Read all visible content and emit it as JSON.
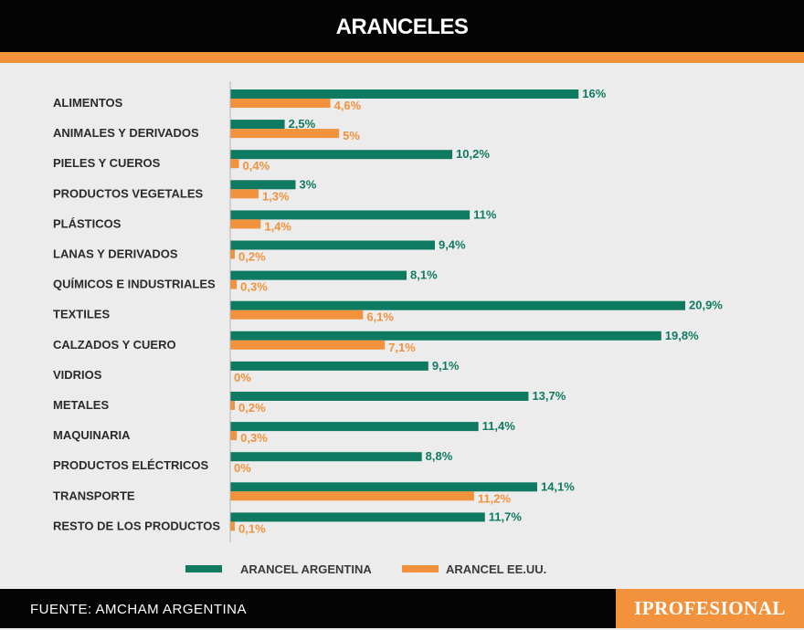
{
  "header": {
    "title": "ARANCELES"
  },
  "footer": {
    "source": "FUENTE: AMCHAM ARGENTINA",
    "brand": "IPROFESIONAL"
  },
  "colors": {
    "argentina": "#0f7a62",
    "eeuu": "#f2923d",
    "header_bg": "#040404",
    "background": "#ececec"
  },
  "chart_data": {
    "type": "bar",
    "orientation": "horizontal",
    "title": "ARANCELES",
    "categories": [
      "ALIMENTOS",
      "ANIMALES Y DERIVADOS",
      "PIELES Y CUEROS",
      "PRODUCTOS VEGETALES",
      "PLÁSTICOS",
      "LANAS Y DERIVADOS",
      "QUÍMICOS E INDUSTRIALES",
      "TEXTILES",
      "CALZADOS Y CUERO",
      "VIDRIOS",
      "METALES",
      "MAQUINARIA",
      "PRODUCTOS ELÉCTRICOS",
      "TRANSPORTE",
      "RESTO DE LOS PRODUCTOS"
    ],
    "series": [
      {
        "name": "ARANCEL ARGENTINA",
        "color": "#0f7a62",
        "values": [
          16,
          2.5,
          10.2,
          3,
          11,
          9.4,
          8.1,
          20.9,
          19.8,
          9.1,
          13.7,
          11.4,
          8.8,
          14.1,
          11.7
        ],
        "labels": [
          "16%",
          "2,5%",
          "10,2%",
          "3%",
          "11%",
          "9,4%",
          "8,1%",
          "20,9%",
          "19,8%",
          "9,1%",
          "13,7%",
          "11,4%",
          "8,8%",
          "14,1%",
          "11,7%"
        ]
      },
      {
        "name": "ARANCEL EE.UU.",
        "color": "#f2923d",
        "values": [
          4.6,
          5,
          0.4,
          1.3,
          1.4,
          0.2,
          0.3,
          6.1,
          7.1,
          0,
          0.2,
          0.3,
          0,
          11.2,
          0.1
        ],
        "labels": [
          "4,6%",
          "5%",
          "0,4%",
          "1,3%",
          "1,4%",
          "0,2%",
          "0,3%",
          "6,1%",
          "7,1%",
          "0%",
          "0,2%",
          "0,3%",
          "0%",
          "11,2%",
          "0,1%"
        ]
      }
    ],
    "xlim": [
      0,
      21
    ],
    "grid": false,
    "legend_position": "bottom",
    "legend": [
      "ARANCEL ARGENTINA",
      "ARANCEL EE.UU."
    ]
  }
}
